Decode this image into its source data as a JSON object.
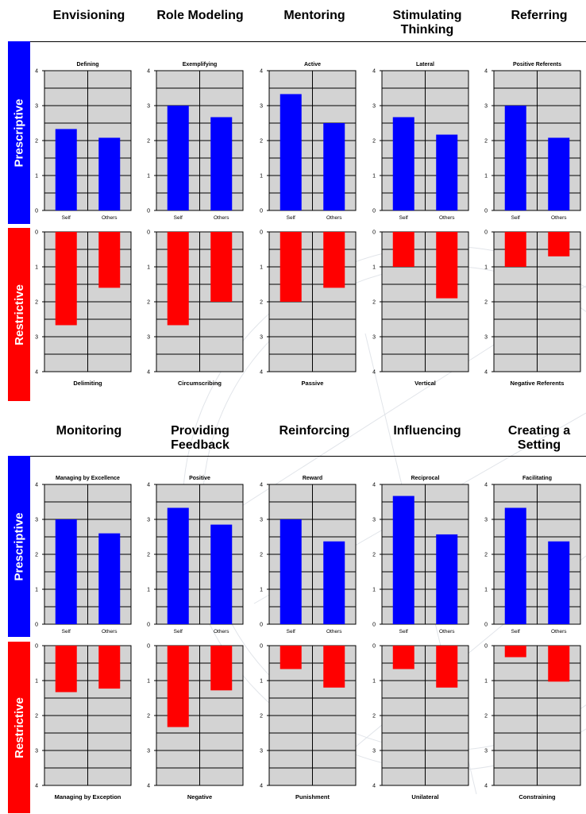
{
  "colors": {
    "prescriptive": "#0000FF",
    "restrictive": "#FF0000",
    "plot_bg": "#D3D3D3",
    "grid": "#000000"
  },
  "bands": {
    "prescriptive": "Prescriptive",
    "restrictive": "Restrictive"
  },
  "sections": [
    {
      "headers": [
        "Envisioning",
        "Role Modeling",
        "Mentoring",
        "Stimulating\nThinking",
        "Referring"
      ]
    },
    {
      "headers": [
        "Monitoring",
        "Providing\nFeedback",
        "Reinforcing",
        "Influencing",
        "Creating a\nSetting"
      ]
    }
  ],
  "chart_data": [
    {
      "type": "bar",
      "section": 0,
      "panel": "prescriptive",
      "title": "Defining",
      "categories": [
        "Self",
        "Others"
      ],
      "values": [
        2.33,
        2.08
      ],
      "ylim": [
        0,
        4
      ],
      "yticks": [
        "0",
        "1",
        "2",
        "3",
        "4"
      ],
      "grid": true
    },
    {
      "type": "bar",
      "section": 0,
      "panel": "prescriptive",
      "title": "Exemplifying",
      "categories": [
        "Self",
        "Others"
      ],
      "values": [
        3.0,
        2.67
      ],
      "ylim": [
        0,
        4
      ],
      "yticks": [
        "0",
        "1",
        "2",
        "3",
        "4"
      ],
      "grid": true
    },
    {
      "type": "bar",
      "section": 0,
      "panel": "prescriptive",
      "title": "Active",
      "categories": [
        "Self",
        "Others"
      ],
      "values": [
        3.33,
        2.5
      ],
      "ylim": [
        0,
        4
      ],
      "yticks": [
        "0",
        "1",
        "2",
        "3",
        "4"
      ],
      "grid": true
    },
    {
      "type": "bar",
      "section": 0,
      "panel": "prescriptive",
      "title": "Lateral",
      "categories": [
        "Self",
        "Others"
      ],
      "values": [
        2.67,
        2.17
      ],
      "ylim": [
        0,
        4
      ],
      "yticks": [
        "0",
        "1",
        "2",
        "3",
        "4"
      ],
      "grid": true
    },
    {
      "type": "bar",
      "section": 0,
      "panel": "prescriptive",
      "title": "Positive Referents",
      "categories": [
        "Self",
        "Others"
      ],
      "values": [
        3.0,
        2.08
      ],
      "ylim": [
        0,
        4
      ],
      "yticks": [
        "0",
        "1",
        "2",
        "3",
        "4"
      ],
      "grid": true
    },
    {
      "type": "bar",
      "section": 0,
      "panel": "restrictive",
      "title": "Delimiting",
      "categories": [
        "Self",
        "Others"
      ],
      "values": [
        2.67,
        1.6
      ],
      "ylim": [
        0,
        4
      ],
      "inverted": true,
      "yticks": [
        "0",
        "1",
        "2",
        "3",
        "4"
      ],
      "grid": true
    },
    {
      "type": "bar",
      "section": 0,
      "panel": "restrictive",
      "title": "Circumscribing",
      "categories": [
        "Self",
        "Others"
      ],
      "values": [
        2.67,
        2.0
      ],
      "ylim": [
        0,
        4
      ],
      "inverted": true,
      "yticks": [
        "0",
        "1",
        "2",
        "3",
        "4"
      ],
      "grid": true
    },
    {
      "type": "bar",
      "section": 0,
      "panel": "restrictive",
      "title": "Passive",
      "categories": [
        "Self",
        "Others"
      ],
      "values": [
        2.0,
        1.6
      ],
      "ylim": [
        0,
        4
      ],
      "inverted": true,
      "yticks": [
        "0",
        "1",
        "2",
        "3",
        "4"
      ],
      "grid": true
    },
    {
      "type": "bar",
      "section": 0,
      "panel": "restrictive",
      "title": "Vertical",
      "categories": [
        "Self",
        "Others"
      ],
      "values": [
        1.0,
        1.9
      ],
      "ylim": [
        0,
        4
      ],
      "inverted": true,
      "yticks": [
        "0",
        "1",
        "2",
        "3",
        "4"
      ],
      "grid": true
    },
    {
      "type": "bar",
      "section": 0,
      "panel": "restrictive",
      "title": "Negative Referents",
      "categories": [
        "Self",
        "Others"
      ],
      "values": [
        1.0,
        0.7
      ],
      "ylim": [
        0,
        4
      ],
      "inverted": true,
      "yticks": [
        "0",
        "1",
        "2",
        "3",
        "4"
      ],
      "grid": true
    },
    {
      "type": "bar",
      "section": 1,
      "panel": "prescriptive",
      "title": "Managing by Excellence",
      "categories": [
        "Self",
        "Others"
      ],
      "values": [
        3.0,
        2.6
      ],
      "ylim": [
        0,
        4
      ],
      "yticks": [
        "0",
        "1",
        "2",
        "3",
        "4"
      ],
      "grid": true
    },
    {
      "type": "bar",
      "section": 1,
      "panel": "prescriptive",
      "title": "Positive",
      "categories": [
        "Self",
        "Others"
      ],
      "values": [
        3.33,
        2.85
      ],
      "ylim": [
        0,
        4
      ],
      "yticks": [
        "0",
        "1",
        "2",
        "3",
        "4"
      ],
      "grid": true
    },
    {
      "type": "bar",
      "section": 1,
      "panel": "prescriptive",
      "title": "Reward",
      "categories": [
        "Self",
        "Others"
      ],
      "values": [
        3.0,
        2.37
      ],
      "ylim": [
        0,
        4
      ],
      "yticks": [
        "0",
        "1",
        "2",
        "3",
        "4"
      ],
      "grid": true
    },
    {
      "type": "bar",
      "section": 1,
      "panel": "prescriptive",
      "title": "Reciprocal",
      "categories": [
        "Self",
        "Others"
      ],
      "values": [
        3.67,
        2.57
      ],
      "ylim": [
        0,
        4
      ],
      "yticks": [
        "0",
        "1",
        "2",
        "3",
        "4"
      ],
      "grid": true
    },
    {
      "type": "bar",
      "section": 1,
      "panel": "prescriptive",
      "title": "Facilitating",
      "categories": [
        "Self",
        "Others"
      ],
      "values": [
        3.33,
        2.37
      ],
      "ylim": [
        0,
        4
      ],
      "yticks": [
        "0",
        "1",
        "2",
        "3",
        "4"
      ],
      "grid": true
    },
    {
      "type": "bar",
      "section": 1,
      "panel": "restrictive",
      "title": "Managing by Exception",
      "categories": [
        "Self",
        "Others"
      ],
      "values": [
        1.33,
        1.23
      ],
      "ylim": [
        0,
        4
      ],
      "inverted": true,
      "yticks": [
        "0",
        "1",
        "2",
        "3",
        "4"
      ],
      "grid": true
    },
    {
      "type": "bar",
      "section": 1,
      "panel": "restrictive",
      "title": "Negative",
      "categories": [
        "Self",
        "Others"
      ],
      "values": [
        2.33,
        1.28
      ],
      "ylim": [
        0,
        4
      ],
      "inverted": true,
      "yticks": [
        "0",
        "1",
        "2",
        "3",
        "4"
      ],
      "grid": true
    },
    {
      "type": "bar",
      "section": 1,
      "panel": "restrictive",
      "title": "Punishment",
      "categories": [
        "Self",
        "Others"
      ],
      "values": [
        0.67,
        1.2
      ],
      "ylim": [
        0,
        4
      ],
      "inverted": true,
      "yticks": [
        "0",
        "1",
        "2",
        "3",
        "4"
      ],
      "grid": true
    },
    {
      "type": "bar",
      "section": 1,
      "panel": "restrictive",
      "title": "Unilateral",
      "categories": [
        "Self",
        "Others"
      ],
      "values": [
        0.67,
        1.2
      ],
      "ylim": [
        0,
        4
      ],
      "inverted": true,
      "yticks": [
        "0",
        "1",
        "2",
        "3",
        "4"
      ],
      "grid": true
    },
    {
      "type": "bar",
      "section": 1,
      "panel": "restrictive",
      "title": "Constraining",
      "categories": [
        "Self",
        "Others"
      ],
      "values": [
        0.33,
        1.03
      ],
      "ylim": [
        0,
        4
      ],
      "inverted": true,
      "yticks": [
        "0",
        "1",
        "2",
        "3",
        "4"
      ],
      "grid": true
    }
  ]
}
